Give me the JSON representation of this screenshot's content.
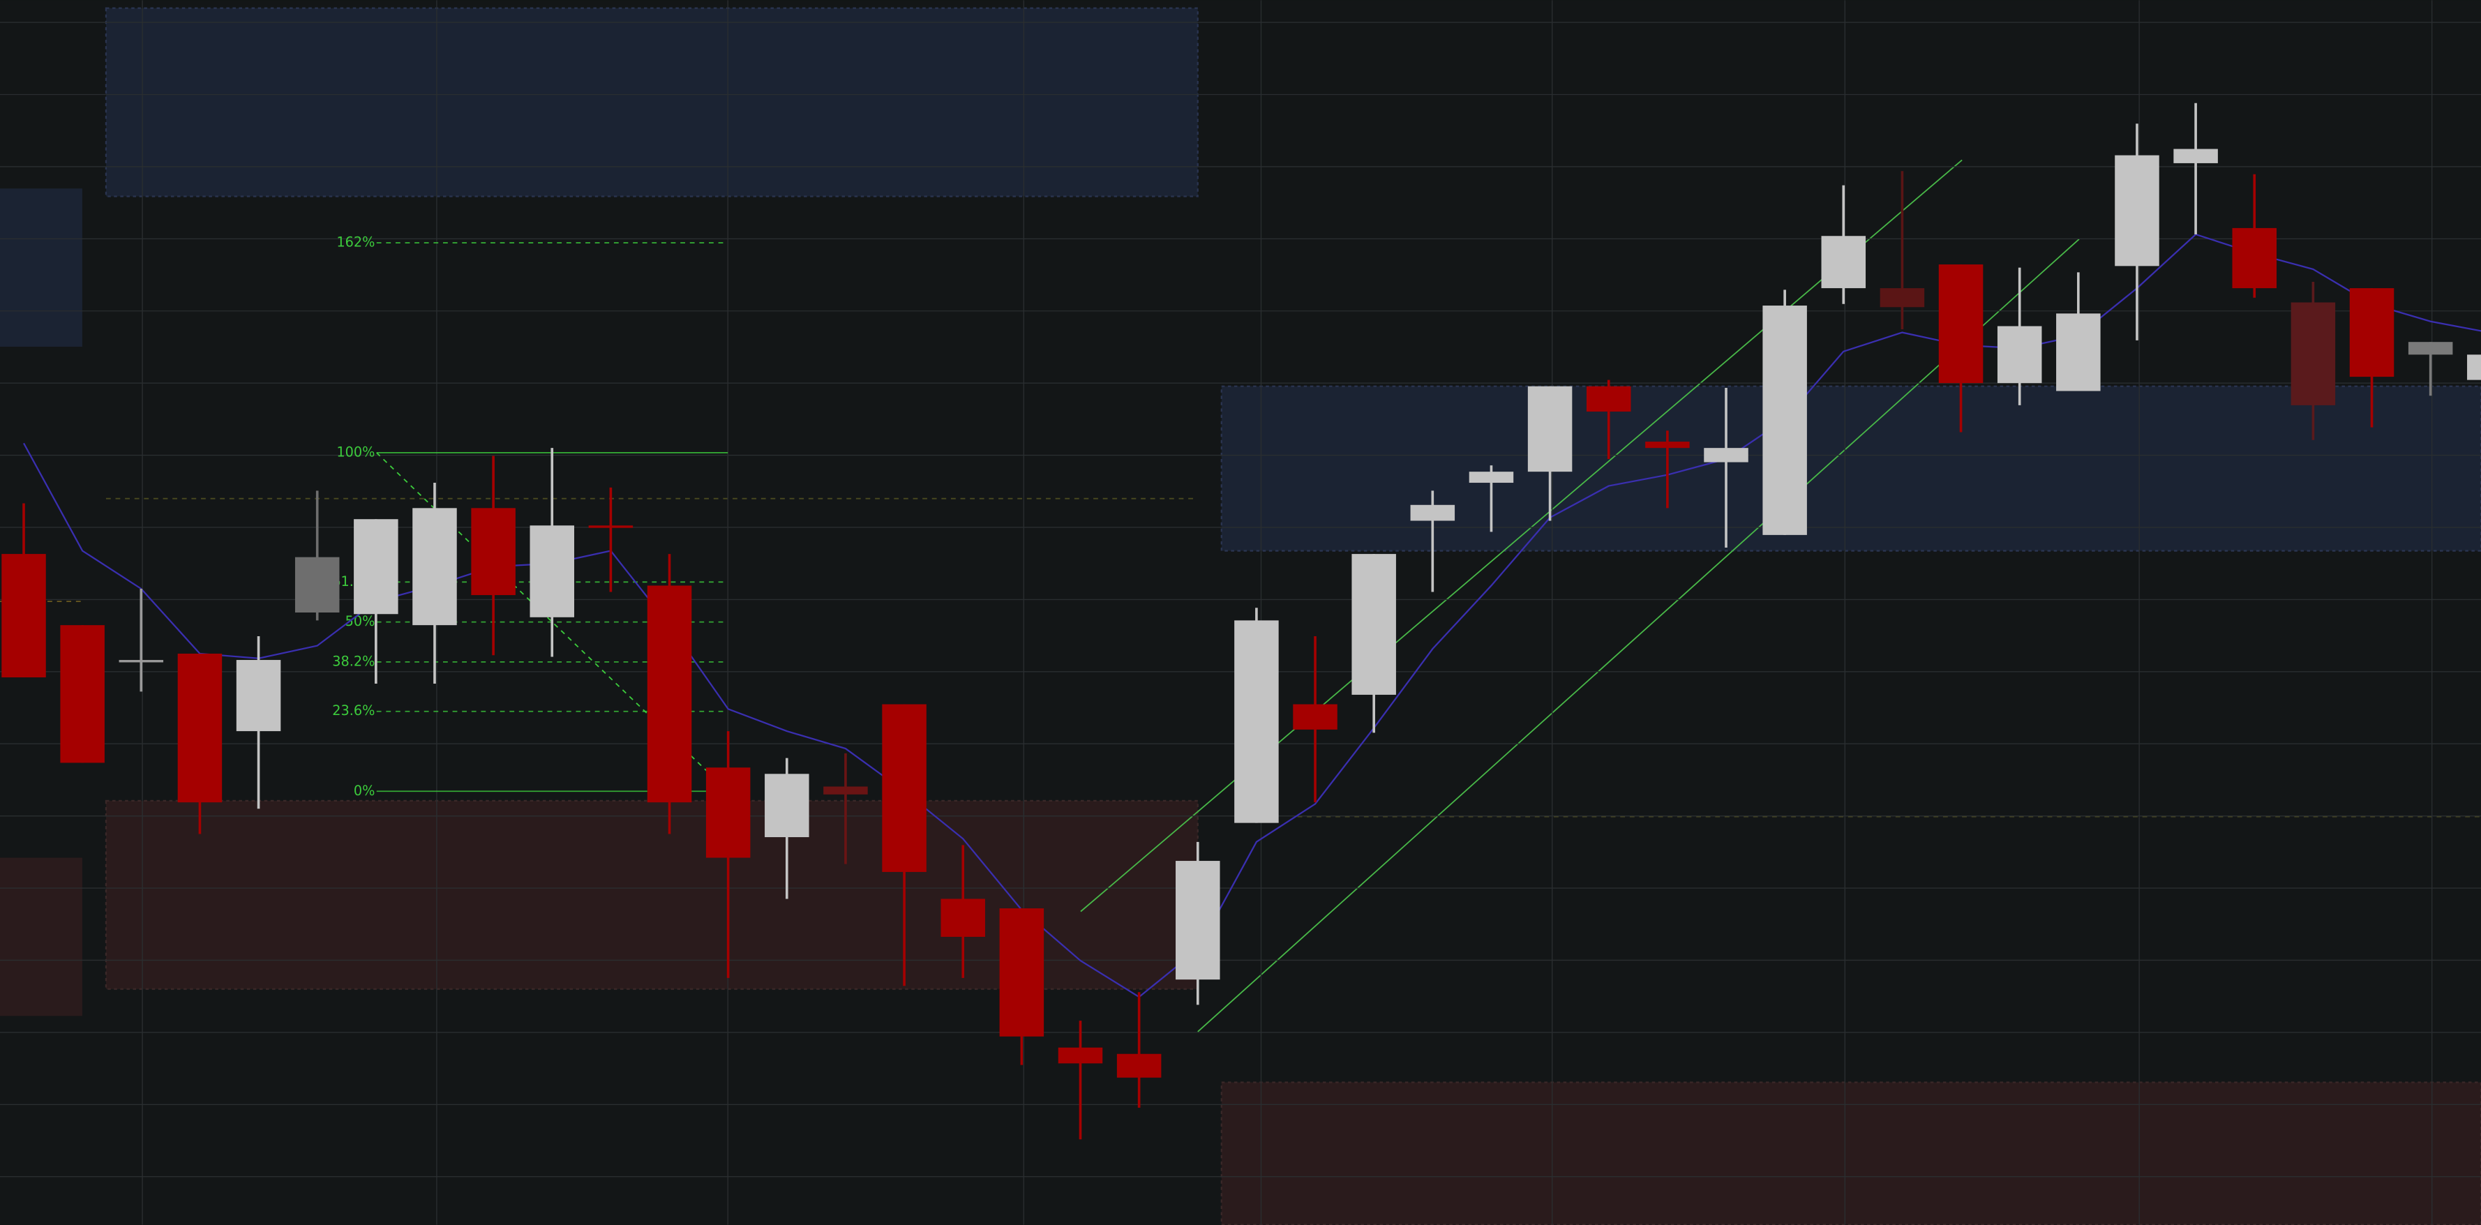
{
  "chart_data": {
    "type": "candlestick",
    "ylim": [
      0,
      774
    ],
    "series": [
      {
        "name": "price",
        "open": [
          424,
          379,
          357,
          361,
          312,
          387,
          386,
          379,
          453,
          384,
          442,
          404,
          289,
          245,
          277,
          329,
          206,
          200,
          112,
          108,
          155,
          254,
          329,
          335,
          445,
          469,
          476,
          530,
          495,
          482,
          436,
          592,
          592,
          607,
          532,
          527,
          606,
          671,
          630,
          583,
          592,
          550,
          534
        ],
        "close": [
          346,
          292,
          357,
          267,
          357,
          422,
          446,
          453,
          398,
          442,
          441,
          267,
          232,
          285,
          272,
          223,
          182,
          119,
          102,
          93,
          230,
          382,
          313,
          424,
          455,
          476,
          530,
          514,
          491,
          491,
          581,
          625,
          580,
          532,
          568,
          576,
          676,
          680,
          592,
          518,
          536,
          558,
          550
        ],
        "high": [
          456,
          379,
          402,
          361,
          372,
          464,
          446,
          469,
          486,
          491,
          466,
          424,
          312,
          295,
          298,
          329,
          240,
          200,
          129,
          147,
          242,
          390,
          372,
          424,
          464,
          480,
          530,
          534,
          502,
          529,
          591,
          657,
          666,
          607,
          605,
          602,
          696,
          709,
          664,
          596,
          592,
          558,
          550
        ],
        "low": [
          346,
          292,
          337,
          247,
          263,
          382,
          342,
          342,
          360,
          359,
          400,
          247,
          156,
          206,
          228,
          151,
          156,
          101,
          54,
          74,
          139,
          254,
          267,
          311,
          400,
          438,
          445,
          484,
          453,
          428,
          436,
          582,
          566,
          501,
          518,
          527,
          559,
          626,
          586,
          496,
          504,
          524,
          534
        ],
        "colors": [
          "#a50000",
          "#a50000",
          "#9a9a9a",
          "#a50000",
          "#c4c4c4",
          "#6e6e6e",
          "#c4c4c4",
          "#c4c4c4",
          "#a50000",
          "#c4c4c4",
          "#a50000",
          "#a50000",
          "#a50000",
          "#c4c4c4",
          "#6a1414",
          "#a50000",
          "#a50000",
          "#a50000",
          "#a50000",
          "#a50000",
          "#c4c4c4",
          "#c4c4c4",
          "#a50000",
          "#c4c4c4",
          "#c4c4c4",
          "#c4c4c4",
          "#c4c4c4",
          "#a50000",
          "#a50000",
          "#c4c4c4",
          "#c4c4c4",
          "#c4c4c4",
          "#5a1515",
          "#a50000",
          "#c4c4c4",
          "#c4c4c4",
          "#c4c4c4",
          "#c4c4c4",
          "#a50000",
          "#5a1a1c",
          "#a50000",
          "#7a7a7a",
          "#c4c4c4"
        ]
      },
      {
        "name": "moving-average",
        "color": "#3a2fb0",
        "values": [
          494,
          426,
          402,
          361,
          358,
          366,
          394,
          404,
          416,
          418,
          426,
          379,
          326,
          312,
          301,
          274,
          244,
          199,
          167,
          144,
          174,
          242,
          266,
          314,
          364,
          404,
          447,
          467,
          474,
          484,
          509,
          552,
          564,
          556,
          554,
          562,
          592,
          626,
          614,
          604,
          582,
          571,
          564
        ]
      }
    ],
    "fibonacci": {
      "start": 488,
      "end": 274,
      "color": "#3ccc3c",
      "levels": [
        {
          "value": 162,
          "label": "162%"
        },
        {
          "value": 100,
          "label": "100%"
        },
        {
          "value": 61.8,
          "label": "61.8%"
        },
        {
          "value": 50,
          "label": "50%"
        },
        {
          "value": 38.2,
          "label": "38.2%"
        },
        {
          "value": 23.6,
          "label": "23.6%"
        },
        {
          "value": 0,
          "label": "0%"
        }
      ]
    }
  }
}
